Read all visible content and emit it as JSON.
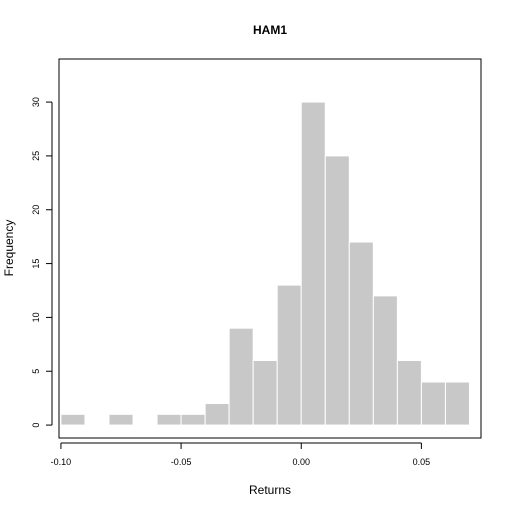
{
  "chart_data": {
    "type": "bar",
    "title": "HAM1",
    "xlabel": "Returns",
    "ylabel": "Frequency",
    "bin_edges": [
      -0.1,
      -0.09,
      -0.08,
      -0.07,
      -0.06,
      -0.05,
      -0.04,
      -0.03,
      -0.02,
      -0.01,
      0.0,
      0.01,
      0.02,
      0.03,
      0.04,
      0.05,
      0.06,
      0.07
    ],
    "values": [
      1,
      0,
      1,
      0,
      1,
      1,
      2,
      9,
      6,
      13,
      30,
      25,
      17,
      12,
      6,
      4,
      4
    ],
    "x_ticks": [
      -0.1,
      -0.05,
      0.0,
      0.05
    ],
    "x_tick_labels": [
      "-0.10",
      "-0.05",
      "0.00",
      "0.05"
    ],
    "y_ticks": [
      0,
      5,
      10,
      15,
      20,
      25,
      30
    ],
    "y_tick_labels": [
      "0",
      "5",
      "10",
      "15",
      "20",
      "25",
      "30"
    ],
    "xlim": [
      -0.1008,
      0.0748
    ],
    "ylim": [
      -1.2,
      34
    ],
    "bar_color": "#c8c8c8",
    "bar_border_color": "#ffffff",
    "grid": false,
    "legend": "none"
  }
}
